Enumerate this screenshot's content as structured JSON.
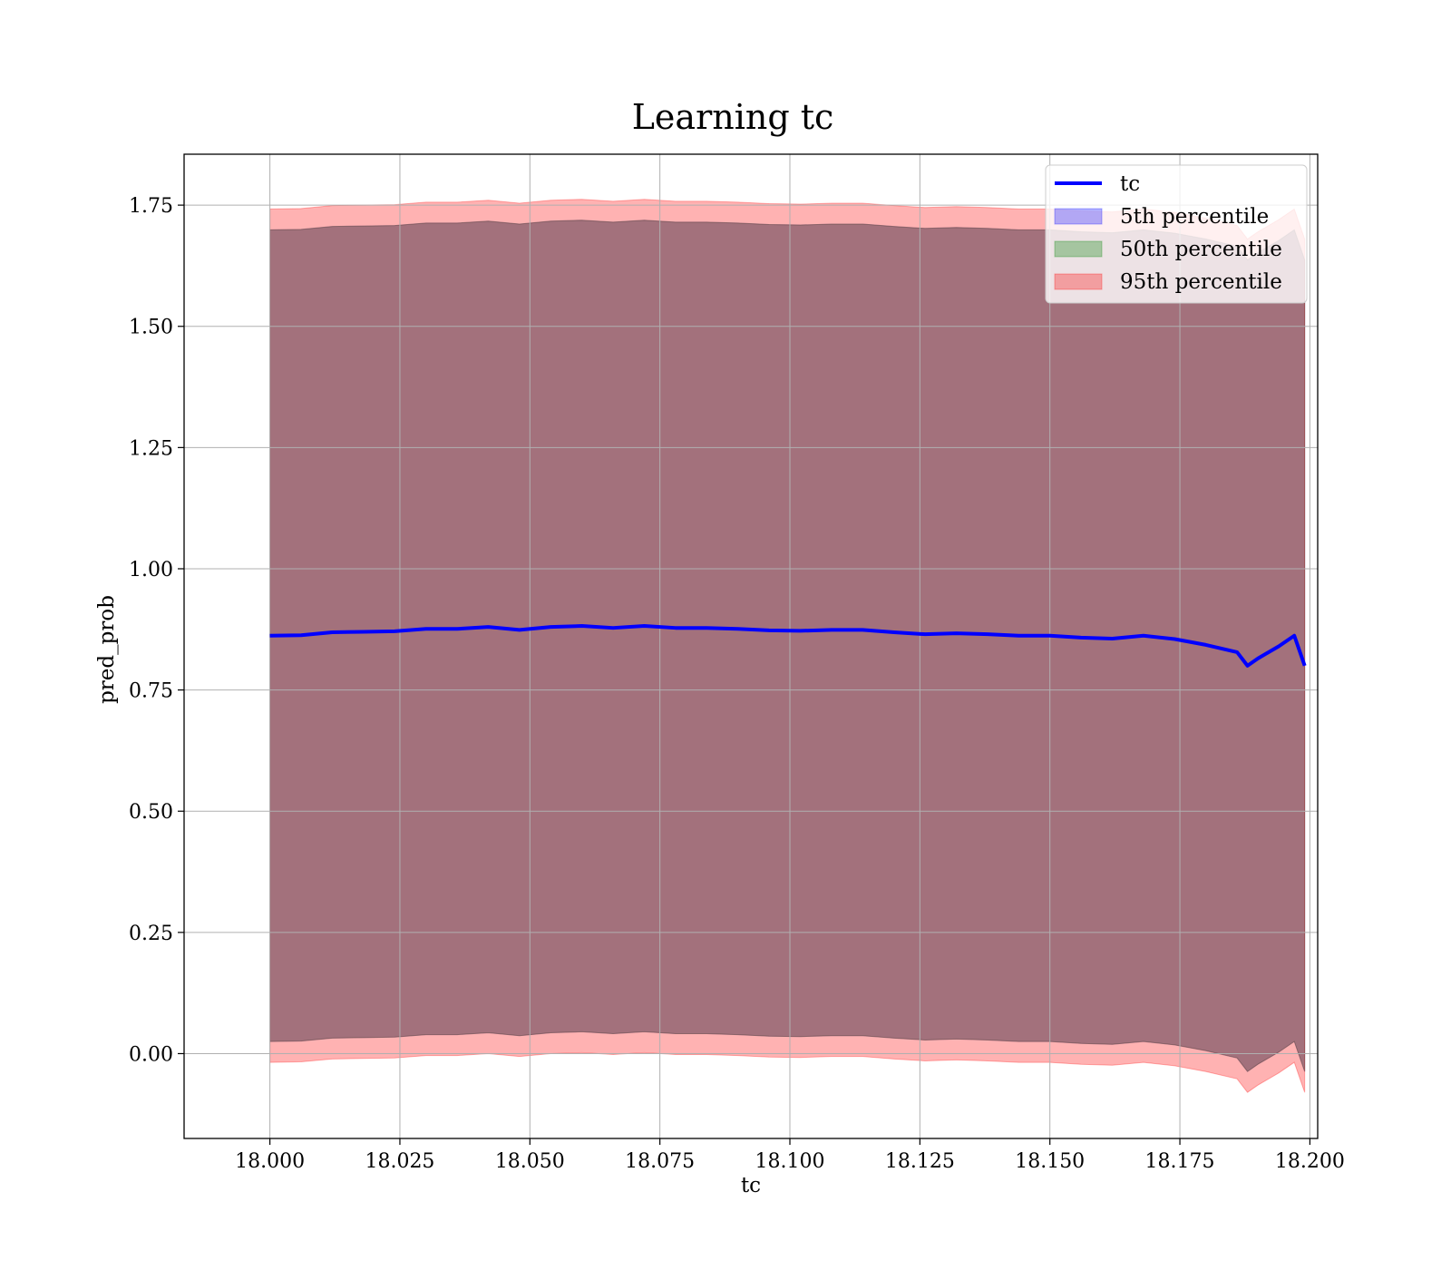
{
  "chart_data": {
    "type": "area",
    "title": "Learning tc",
    "xlabel": "tc",
    "ylabel": "pred_prob",
    "xlim": [
      17.9835,
      18.2015
    ],
    "ylim": [
      -0.175,
      1.855
    ],
    "x_ticks": [
      18.0,
      18.025,
      18.05,
      18.075,
      18.1,
      18.125,
      18.15,
      18.175,
      18.2
    ],
    "x_tick_labels": [
      "18.000",
      "18.025",
      "18.050",
      "18.075",
      "18.100",
      "18.125",
      "18.150",
      "18.175",
      "18.200"
    ],
    "y_ticks": [
      0.0,
      0.25,
      0.5,
      0.75,
      1.0,
      1.25,
      1.5,
      1.75
    ],
    "y_tick_labels": [
      "0.00",
      "0.25",
      "0.50",
      "0.75",
      "1.00",
      "1.25",
      "1.50",
      "1.75"
    ],
    "grid": true,
    "legend_position": "top-right",
    "x": [
      18.0,
      18.006,
      18.012,
      18.018,
      18.024,
      18.03,
      18.036,
      18.042,
      18.048,
      18.054,
      18.06,
      18.066,
      18.072,
      18.078,
      18.084,
      18.09,
      18.096,
      18.102,
      18.108,
      18.114,
      18.12,
      18.126,
      18.132,
      18.138,
      18.144,
      18.15,
      18.156,
      18.162,
      18.168,
      18.174,
      18.18,
      18.186,
      18.188,
      18.19,
      18.194,
      18.197,
      18.199
    ],
    "series": [
      {
        "name": "tc",
        "kind": "line",
        "color": "#0000ff",
        "values": [
          0.862,
          0.863,
          0.869,
          0.87,
          0.871,
          0.876,
          0.876,
          0.88,
          0.874,
          0.88,
          0.882,
          0.878,
          0.882,
          0.878,
          0.878,
          0.876,
          0.873,
          0.872,
          0.874,
          0.874,
          0.869,
          0.865,
          0.867,
          0.865,
          0.862,
          0.862,
          0.858,
          0.856,
          0.862,
          0.855,
          0.843,
          0.828,
          0.8,
          0.815,
          0.84,
          0.862,
          0.8
        ]
      },
      {
        "name": "5th percentile",
        "kind": "band",
        "color": "#0000ff",
        "lower": [
          0.025,
          0.026,
          0.032,
          0.033,
          0.034,
          0.039,
          0.039,
          0.043,
          0.037,
          0.043,
          0.045,
          0.041,
          0.045,
          0.041,
          0.041,
          0.039,
          0.036,
          0.035,
          0.037,
          0.037,
          0.032,
          0.028,
          0.03,
          0.028,
          0.025,
          0.025,
          0.021,
          0.019,
          0.025,
          0.018,
          0.006,
          -0.009,
          -0.037,
          -0.022,
          0.003,
          0.025,
          -0.037
        ],
        "upper": [
          1.699,
          1.7,
          1.706,
          1.707,
          1.708,
          1.713,
          1.713,
          1.717,
          1.711,
          1.717,
          1.719,
          1.715,
          1.719,
          1.715,
          1.715,
          1.713,
          1.71,
          1.709,
          1.711,
          1.711,
          1.706,
          1.702,
          1.704,
          1.702,
          1.699,
          1.699,
          1.695,
          1.693,
          1.699,
          1.692,
          1.68,
          1.665,
          1.637,
          1.652,
          1.677,
          1.699,
          1.637
        ]
      },
      {
        "name": "50th percentile",
        "kind": "band",
        "color": "#008000",
        "lower": [
          0.025,
          0.026,
          0.032,
          0.033,
          0.034,
          0.039,
          0.039,
          0.043,
          0.037,
          0.043,
          0.045,
          0.041,
          0.045,
          0.041,
          0.041,
          0.039,
          0.036,
          0.035,
          0.037,
          0.037,
          0.032,
          0.028,
          0.03,
          0.028,
          0.025,
          0.025,
          0.021,
          0.019,
          0.025,
          0.018,
          0.006,
          -0.009,
          -0.037,
          -0.022,
          0.003,
          0.025,
          -0.037
        ],
        "upper": [
          1.699,
          1.7,
          1.706,
          1.707,
          1.708,
          1.713,
          1.713,
          1.717,
          1.711,
          1.717,
          1.719,
          1.715,
          1.719,
          1.715,
          1.715,
          1.713,
          1.71,
          1.709,
          1.711,
          1.711,
          1.706,
          1.702,
          1.704,
          1.702,
          1.699,
          1.699,
          1.695,
          1.693,
          1.699,
          1.692,
          1.68,
          1.665,
          1.637,
          1.652,
          1.677,
          1.699,
          1.637
        ]
      },
      {
        "name": "95th percentile",
        "kind": "band",
        "color": "#ff0000",
        "lower": [
          -0.018,
          -0.017,
          -0.011,
          -0.01,
          -0.009,
          -0.004,
          -0.004,
          0.0,
          -0.006,
          0.0,
          0.002,
          -0.002,
          0.002,
          -0.002,
          -0.002,
          -0.004,
          -0.007,
          -0.008,
          -0.006,
          -0.006,
          -0.011,
          -0.015,
          -0.013,
          -0.015,
          -0.018,
          -0.018,
          -0.022,
          -0.024,
          -0.018,
          -0.025,
          -0.037,
          -0.052,
          -0.08,
          -0.065,
          -0.04,
          -0.018,
          -0.08
        ],
        "upper": [
          1.742,
          1.743,
          1.749,
          1.75,
          1.751,
          1.756,
          1.756,
          1.76,
          1.754,
          1.76,
          1.762,
          1.758,
          1.762,
          1.758,
          1.758,
          1.756,
          1.753,
          1.752,
          1.754,
          1.754,
          1.749,
          1.745,
          1.747,
          1.745,
          1.742,
          1.742,
          1.738,
          1.736,
          1.742,
          1.735,
          1.723,
          1.708,
          1.68,
          1.695,
          1.72,
          1.742,
          1.68
        ]
      }
    ]
  }
}
